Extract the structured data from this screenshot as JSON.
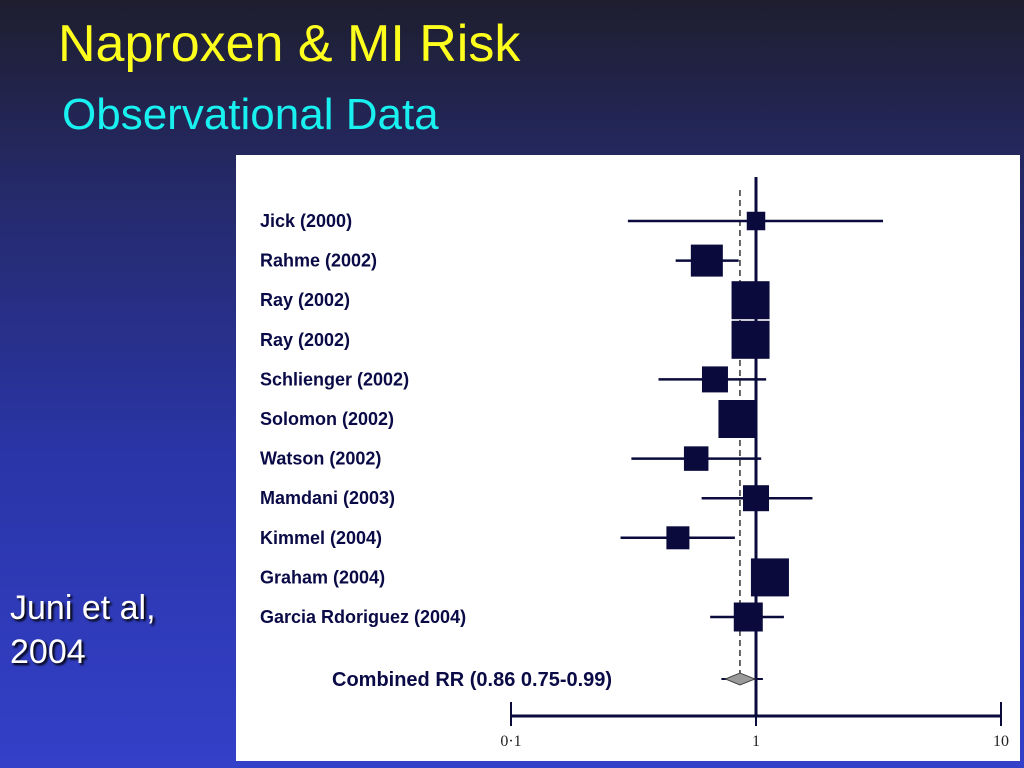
{
  "slide": {
    "title": "Naproxen & MI Risk",
    "subtitle": "Observational Data",
    "citation": "Juni et al, 2004"
  },
  "colors": {
    "title": "#ffff1e",
    "subtitle": "#19f0f0",
    "marker": "#0a0a3c",
    "summary_diamond": "#9a9a9a"
  },
  "chart_data": {
    "type": "forest",
    "x_scale": "log",
    "xlim": [
      0.1,
      10
    ],
    "x_ticks": [
      "0·1",
      "1",
      "10"
    ],
    "reference_line": 1,
    "pooled_line": 0.86,
    "studies": [
      {
        "label": "Jick (2000)",
        "rr": 1.0,
        "ci": [
          0.3,
          3.3
        ],
        "weight": 0.35
      },
      {
        "label": "Rahme (2002)",
        "rr": 0.63,
        "ci": [
          0.47,
          0.85
        ],
        "weight": 0.8
      },
      {
        "label": "Ray (2002)",
        "rr": 0.95,
        "ci": [
          0.82,
          1.1
        ],
        "weight": 1.0
      },
      {
        "label": "Ray (2002)",
        "rr": 0.95,
        "ci": [
          0.82,
          1.1
        ],
        "weight": 1.0
      },
      {
        "label": "Schlienger (2002)",
        "rr": 0.68,
        "ci": [
          0.4,
          1.1
        ],
        "weight": 0.6
      },
      {
        "label": "Solomon (2002)",
        "rr": 0.84,
        "ci": [
          0.72,
          0.98
        ],
        "weight": 1.0
      },
      {
        "label": "Watson (2002)",
        "rr": 0.57,
        "ci": [
          0.31,
          1.05
        ],
        "weight": 0.55
      },
      {
        "label": "Mamdani (2003)",
        "rr": 1.0,
        "ci": [
          0.6,
          1.7
        ],
        "weight": 0.6
      },
      {
        "label": "Kimmel (2004)",
        "rr": 0.48,
        "ci": [
          0.28,
          0.82
        ],
        "weight": 0.5
      },
      {
        "label": "Graham (2004)",
        "rr": 1.14,
        "ci": [
          1.0,
          1.3
        ],
        "weight": 1.0
      },
      {
        "label": "Garcia Rdoriguez (2004)",
        "rr": 0.93,
        "ci": [
          0.65,
          1.3
        ],
        "weight": 0.7
      }
    ],
    "combined": {
      "label": "Combined RR (0.86 0.75-0.99)",
      "rr": 0.86,
      "ci": [
        0.75,
        0.99
      ]
    }
  }
}
